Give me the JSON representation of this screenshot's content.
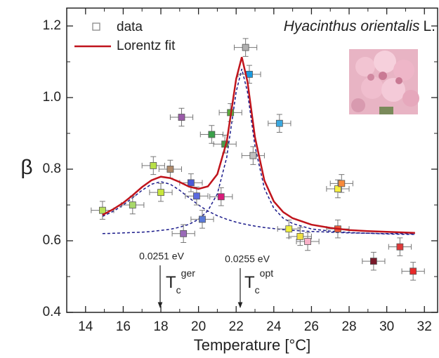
{
  "chart_data": {
    "type": "scatter",
    "species": "Hyacinthus orientalis",
    "authority": "L.",
    "xlabel": "Temperature [°C]",
    "ylabel": "β",
    "xlim": [
      13,
      32.7
    ],
    "ylim": [
      0.4,
      1.25
    ],
    "xticks": [
      14,
      16,
      18,
      20,
      22,
      24,
      26,
      28,
      30,
      32
    ],
    "xminorticks": [
      13,
      15,
      17,
      19,
      21,
      23,
      25,
      27,
      29,
      31
    ],
    "yticks": [
      0.4,
      0.6,
      0.8,
      {
        "value": 1,
        "label": "1.0"
      },
      1.2
    ],
    "yminorticks": [
      0.5,
      0.7,
      0.9,
      1.1
    ],
    "legend": "upper left",
    "series": [
      {
        "name": "data",
        "type": "scatter",
        "color": "#8a8a8a",
        "x": [
          14.9,
          16.5,
          17.6,
          18.0,
          18.5,
          19.1,
          19.2,
          19.6,
          19.9,
          20.2,
          20.7,
          21.2,
          21.4,
          21.7,
          22.5,
          22.7,
          22.9,
          24.3,
          24.8,
          25.4,
          25.8,
          27.4,
          27.6,
          27.4,
          29.3,
          30.7,
          31.4
        ],
        "values": [
          0.685,
          0.7,
          0.81,
          0.735,
          0.8,
          0.945,
          0.62,
          0.762,
          0.725,
          0.66,
          0.897,
          0.723,
          0.87,
          0.958,
          1.14,
          1.065,
          0.838,
          0.928,
          0.633,
          0.612,
          0.598,
          0.745,
          0.76,
          0.633,
          0.543,
          0.583,
          0.515
        ],
        "point_colors": [
          "#b8e05a",
          "#a8d86a",
          "#b8e048",
          "#c8e63c",
          "#b08a6a",
          "#9a5aa8",
          "#9a6ab8",
          "#4a5ad8",
          "#5a6ae0",
          "#5a7ad8",
          "#3aa04a",
          "#d81a7a",
          "#4a9a4a",
          "#5aaa3a",
          "#b0b0b0",
          "#1a9ae0",
          "#c0c0c0",
          "#3aa8e0",
          "#f0f040",
          "#f0e040",
          "#f8b0c8",
          "#f8f040",
          "#f88a3a",
          "#f05a3a",
          "#7a1a2a",
          "#e03a3a",
          "#e82a2a"
        ],
        "xerr": 0.6,
        "yerr": 0.025
      },
      {
        "name": "Lorentz fit",
        "type": "line",
        "color": "#c0141c",
        "x": [
          14.9,
          15.5,
          16,
          16.5,
          17,
          17.5,
          18,
          18.5,
          19,
          19.5,
          20,
          20.5,
          21,
          21.5,
          22,
          22.3,
          22.6,
          23,
          23.5,
          24,
          24.5,
          25,
          26,
          27,
          28,
          29,
          30,
          31,
          31.5
        ],
        "values": [
          0.672,
          0.689,
          0.706,
          0.727,
          0.75,
          0.769,
          0.779,
          0.775,
          0.764,
          0.751,
          0.745,
          0.752,
          0.786,
          0.877,
          1.052,
          1.113,
          1.045,
          0.889,
          0.768,
          0.71,
          0.68,
          0.663,
          0.645,
          0.636,
          0.63,
          0.627,
          0.625,
          0.623,
          0.622
        ]
      }
    ],
    "components": [
      {
        "color": "#1a1a8a",
        "x": [
          14.9,
          15.5,
          16,
          16.5,
          17,
          17.5,
          18,
          18.5,
          19,
          19.5,
          20,
          20.5,
          21,
          21.5,
          22,
          22.3,
          22.6,
          23,
          23.5,
          24,
          24.5,
          25,
          26,
          27,
          28,
          29,
          30,
          31,
          31.5
        ],
        "values": [
          0.668,
          0.683,
          0.7,
          0.72,
          0.741,
          0.758,
          0.765,
          0.758,
          0.741,
          0.72,
          0.7,
          0.683,
          0.67,
          0.66,
          0.652,
          0.648,
          0.645,
          0.641,
          0.637,
          0.634,
          0.631,
          0.629,
          0.626,
          0.624,
          0.622,
          0.621,
          0.62,
          0.62,
          0.619
        ]
      },
      {
        "color": "#1a1a8a",
        "x": [
          14.9,
          15.5,
          16,
          16.5,
          17,
          17.5,
          18,
          18.5,
          19,
          19.5,
          20,
          20.5,
          21,
          21.5,
          22,
          22.3,
          22.6,
          23,
          23.5,
          24,
          24.5,
          25,
          26,
          27,
          28,
          29,
          30,
          31,
          31.5
        ],
        "values": [
          0.62,
          0.621,
          0.622,
          0.623,
          0.624,
          0.626,
          0.629,
          0.632,
          0.638,
          0.646,
          0.66,
          0.684,
          0.731,
          0.833,
          1.016,
          1.08,
          1.016,
          0.864,
          0.746,
          0.691,
          0.663,
          0.648,
          0.633,
          0.627,
          0.623,
          0.621,
          0.619,
          0.618,
          0.618
        ]
      }
    ],
    "annotations": [
      {
        "text": "0.0251 eV",
        "symbol": "T",
        "subscript": "c",
        "superscript": "ger"
      },
      {
        "text": "0.0255 eV",
        "symbol": "T",
        "subscript": "c",
        "superscript": "opt"
      }
    ]
  }
}
